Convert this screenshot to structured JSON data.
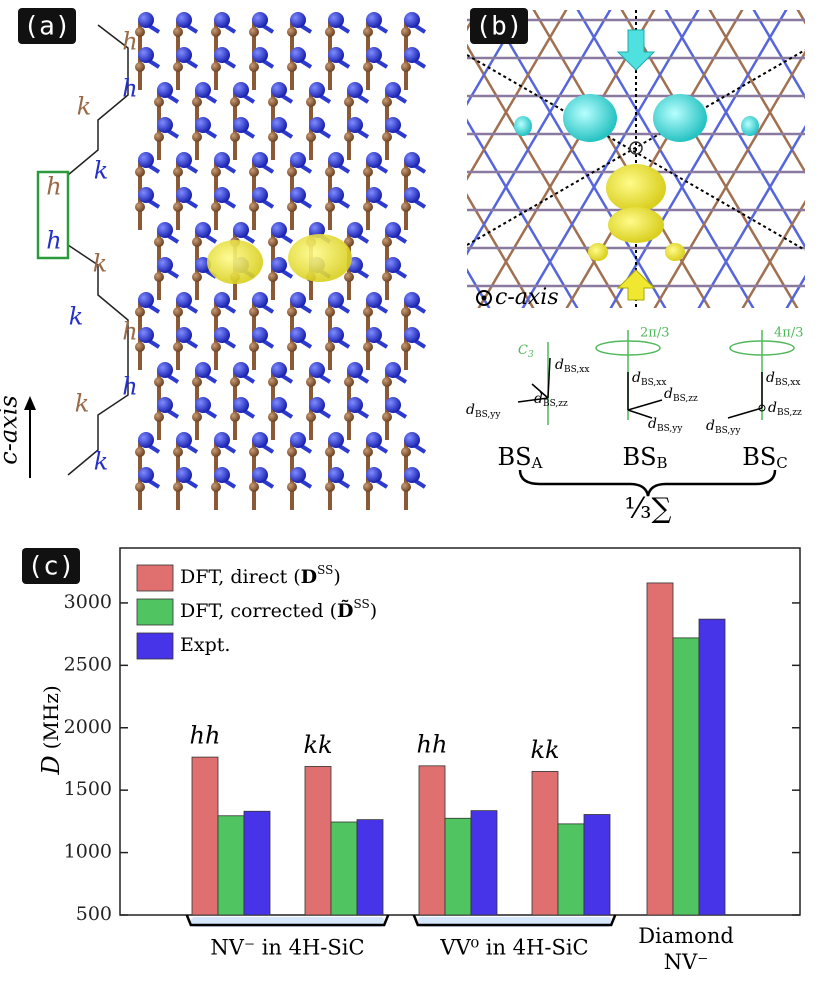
{
  "panel_a": {
    "label": "(a)",
    "stacking": [
      "h",
      "h",
      "k",
      "k",
      "h",
      "h",
      "k",
      "k",
      "h",
      "h",
      "k",
      "k"
    ],
    "axis_label": "c-axis"
  },
  "panel_b": {
    "label": "(b)",
    "axis_label": "c-axis",
    "frames": [
      {
        "name": "BS",
        "sub": "A",
        "axis": "C",
        "axis_sub": "3",
        "vectors": [
          {
            "sym": "d",
            "sub": "BS,xx"
          },
          {
            "sym": "d",
            "sub": "BS,yy"
          },
          {
            "sym": "d",
            "sub": "BS,zz"
          }
        ]
      },
      {
        "name": "BS",
        "sub": "B",
        "rotation": "2π/3",
        "vectors": [
          {
            "sym": "d",
            "sub": "BS,xx"
          },
          {
            "sym": "d",
            "sub": "BS,zz"
          },
          {
            "sym": "d",
            "sub": "BS,yy"
          }
        ]
      },
      {
        "name": "BS",
        "sub": "C",
        "rotation": "4π/3",
        "vectors": [
          {
            "sym": "d",
            "sub": "BS,xx"
          },
          {
            "sym": "d",
            "sub": "BS,yy"
          },
          {
            "sym": "d",
            "sub": "BS,zz"
          }
        ]
      }
    ],
    "sum_label": "⅓∑"
  },
  "chart_data": {
    "type": "bar",
    "panel_label": "(c)",
    "ylabel_symbol": "D",
    "ylabel_unit": "(MHz)",
    "categories": [
      "hh",
      "kk",
      "hh",
      "kk",
      null
    ],
    "groups": [
      "NV⁻ in 4H-SiC",
      "VV⁰ in 4H-SiC",
      "Diamond NV⁻"
    ],
    "series": [
      {
        "name_parts": [
          "DFT, direct (",
          "D",
          "SS",
          ")"
        ],
        "color": "#e07070",
        "values": [
          1765,
          1690,
          1695,
          1650,
          3160
        ]
      },
      {
        "name_parts": [
          "DFT, corrected (",
          "D̃",
          "SS",
          ")"
        ],
        "color": "#4fc460",
        "values": [
          1295,
          1245,
          1275,
          1230,
          2720
        ]
      },
      {
        "name_parts": [
          "Expt.",
          "",
          "",
          ""
        ],
        "color": "#4834e8",
        "values": [
          1331,
          1264,
          1336,
          1305,
          2870
        ]
      }
    ],
    "ylim": [
      500,
      3440
    ],
    "yticks": [
      500,
      1000,
      1500,
      2000,
      2500,
      3000
    ]
  }
}
